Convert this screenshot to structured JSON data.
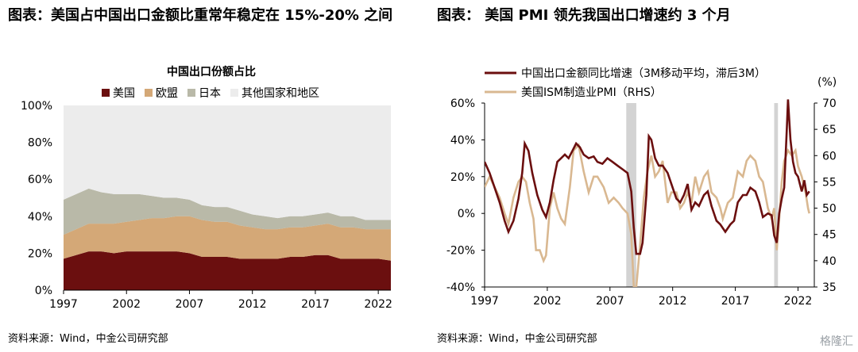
{
  "left_panel": {
    "title": "图表：美国占中国出口金额比重常年稳定在 15%-20% 之间",
    "source": "资料来源：Wind，中金公司研究部"
  },
  "right_panel": {
    "title": "图表：  美国 PMI 领先我国出口增速约 3 个月",
    "source": "资料来源：Wind，中金公司研究部"
  },
  "watermark": "格隆汇",
  "chart_data": [
    {
      "type": "area",
      "stacked": true,
      "title": "中国出口份额占比",
      "x_ticks": [
        "1997",
        "2002",
        "2007",
        "2012",
        "2017",
        "2022"
      ],
      "y_ticks": [
        "0%",
        "20%",
        "40%",
        "60%",
        "80%",
        "100%"
      ],
      "ylim": [
        0,
        100
      ],
      "grid": false,
      "legend_position": "top",
      "background": "#f2f2f2",
      "x": [
        1997,
        1998,
        1999,
        2000,
        2001,
        2002,
        2003,
        2004,
        2005,
        2006,
        2007,
        2008,
        2009,
        2010,
        2011,
        2012,
        2013,
        2014,
        2015,
        2016,
        2017,
        2018,
        2019,
        2020,
        2021,
        2022,
        2023
      ],
      "series": [
        {
          "name": "美国",
          "color": "#6b0f0f",
          "values": [
            17,
            19,
            21,
            21,
            20,
            21,
            21,
            21,
            21,
            21,
            20,
            18,
            18,
            18,
            17,
            17,
            17,
            17,
            18,
            18,
            19,
            19,
            17,
            17,
            17,
            17,
            16
          ]
        },
        {
          "name": "欧盟",
          "color": "#d4a877",
          "values": [
            13,
            14,
            15,
            15,
            16,
            16,
            17,
            18,
            18,
            19,
            20,
            20,
            19,
            19,
            18,
            17,
            16,
            16,
            16,
            16,
            16,
            17,
            17,
            17,
            16,
            16,
            17
          ]
        },
        {
          "name": "日本",
          "color": "#b9b9a8",
          "values": [
            19,
            19,
            19,
            17,
            16,
            15,
            14,
            12,
            11,
            10,
            9,
            8,
            8,
            8,
            8,
            7,
            7,
            6,
            6,
            6,
            6,
            6,
            6,
            6,
            5,
            5,
            5
          ]
        },
        {
          "name": "其他国家和地区",
          "color": "#ececec",
          "values": [
            51,
            48,
            45,
            47,
            48,
            48,
            48,
            49,
            50,
            50,
            51,
            54,
            55,
            55,
            57,
            59,
            60,
            61,
            60,
            60,
            59,
            58,
            60,
            60,
            62,
            62,
            62
          ]
        }
      ]
    },
    {
      "type": "line",
      "x_ticks": [
        "1997",
        "2002",
        "2007",
        "2012",
        "2017",
        "2022"
      ],
      "y_left_ticks": [
        "-40%",
        "-20%",
        "0%",
        "20%",
        "40%",
        "60%"
      ],
      "y_left_range": [
        -40,
        60
      ],
      "y_right_ticks": [
        "35",
        "40",
        "45",
        "50",
        "55",
        "60",
        "65",
        "70"
      ],
      "y_right_range": [
        35,
        70
      ],
      "right_axis_unit": "(%)",
      "legend_position": "top",
      "shaded_periods": [
        [
          2008.3,
          2009.1
        ],
        [
          2020.1,
          2020.4
        ]
      ],
      "series": [
        {
          "name": "中国出口金额同比增速（3M移动平均，滞后3M）",
          "axis": "left",
          "color": "#6b0f0f",
          "points": [
            [
              1997.0,
              28
            ],
            [
              1997.4,
              22
            ],
            [
              1997.8,
              14
            ],
            [
              1998.2,
              6
            ],
            [
              1998.6,
              -4
            ],
            [
              1998.9,
              -10
            ],
            [
              1999.3,
              -4
            ],
            [
              1999.7,
              8
            ],
            [
              2000.0,
              22
            ],
            [
              2000.2,
              38
            ],
            [
              2000.5,
              34
            ],
            [
              2000.8,
              22
            ],
            [
              2001.2,
              10
            ],
            [
              2001.6,
              2
            ],
            [
              2001.9,
              -2
            ],
            [
              2002.2,
              6
            ],
            [
              2002.5,
              18
            ],
            [
              2002.8,
              28
            ],
            [
              2003.1,
              30
            ],
            [
              2003.4,
              32
            ],
            [
              2003.7,
              30
            ],
            [
              2004.0,
              34
            ],
            [
              2004.3,
              38
            ],
            [
              2004.6,
              36
            ],
            [
              2004.9,
              32
            ],
            [
              2005.3,
              30
            ],
            [
              2005.7,
              31
            ],
            [
              2006.0,
              28
            ],
            [
              2006.4,
              27
            ],
            [
              2006.8,
              30
            ],
            [
              2007.2,
              28
            ],
            [
              2007.6,
              26
            ],
            [
              2008.0,
              24
            ],
            [
              2008.4,
              22
            ],
            [
              2008.7,
              12
            ],
            [
              2008.9,
              -8
            ],
            [
              2009.1,
              -22
            ],
            [
              2009.4,
              -22
            ],
            [
              2009.6,
              -16
            ],
            [
              2009.9,
              10
            ],
            [
              2010.1,
              42
            ],
            [
              2010.3,
              40
            ],
            [
              2010.6,
              30
            ],
            [
              2010.9,
              26
            ],
            [
              2011.2,
              26
            ],
            [
              2011.6,
              22
            ],
            [
              2011.9,
              16
            ],
            [
              2012.3,
              8
            ],
            [
              2012.6,
              6
            ],
            [
              2012.9,
              10
            ],
            [
              2013.2,
              16
            ],
            [
              2013.5,
              2
            ],
            [
              2013.8,
              6
            ],
            [
              2014.1,
              4
            ],
            [
              2014.5,
              10
            ],
            [
              2014.8,
              12
            ],
            [
              2015.1,
              4
            ],
            [
              2015.5,
              -4
            ],
            [
              2015.8,
              -6
            ],
            [
              2016.2,
              -10
            ],
            [
              2016.6,
              -6
            ],
            [
              2016.9,
              -4
            ],
            [
              2017.2,
              6
            ],
            [
              2017.6,
              10
            ],
            [
              2017.9,
              10
            ],
            [
              2018.2,
              14
            ],
            [
              2018.6,
              12
            ],
            [
              2018.9,
              6
            ],
            [
              2019.2,
              -2
            ],
            [
              2019.6,
              0
            ],
            [
              2019.9,
              -1
            ],
            [
              2020.1,
              -12
            ],
            [
              2020.3,
              -16
            ],
            [
              2020.5,
              0
            ],
            [
              2020.7,
              8
            ],
            [
              2020.9,
              14
            ],
            [
              2021.1,
              45
            ],
            [
              2021.2,
              62
            ],
            [
              2021.4,
              40
            ],
            [
              2021.6,
              28
            ],
            [
              2021.8,
              22
            ],
            [
              2022.0,
              20
            ],
            [
              2022.3,
              12
            ],
            [
              2022.5,
              18
            ],
            [
              2022.7,
              10
            ],
            [
              2022.9,
              12
            ]
          ]
        },
        {
          "name": "美国ISM制造业PMI（RHS）",
          "axis": "right",
          "color": "#d9b891",
          "points": [
            [
              1997.0,
              54
            ],
            [
              1997.4,
              56
            ],
            [
              1997.8,
              54
            ],
            [
              1998.2,
              52
            ],
            [
              1998.6,
              49
            ],
            [
              1998.9,
              47
            ],
            [
              1999.3,
              52
            ],
            [
              1999.7,
              55
            ],
            [
              2000.0,
              56
            ],
            [
              2000.3,
              55
            ],
            [
              2000.6,
              51
            ],
            [
              2000.9,
              48
            ],
            [
              2001.1,
              42
            ],
            [
              2001.4,
              42
            ],
            [
              2001.7,
              40
            ],
            [
              2001.9,
              41
            ],
            [
              2002.2,
              50
            ],
            [
              2002.5,
              53
            ],
            [
              2002.8,
              50
            ],
            [
              2003.1,
              48
            ],
            [
              2003.4,
              47
            ],
            [
              2003.8,
              54
            ],
            [
              2004.1,
              61
            ],
            [
              2004.5,
              62
            ],
            [
              2004.9,
              57
            ],
            [
              2005.3,
              53
            ],
            [
              2005.7,
              56
            ],
            [
              2006.0,
              56
            ],
            [
              2006.5,
              54
            ],
            [
              2006.9,
              51
            ],
            [
              2007.3,
              52
            ],
            [
              2007.7,
              51
            ],
            [
              2008.0,
              50
            ],
            [
              2008.4,
              49
            ],
            [
              2008.7,
              45
            ],
            [
              2008.9,
              35
            ],
            [
              2009.1,
              35
            ],
            [
              2009.4,
              43
            ],
            [
              2009.7,
              52
            ],
            [
              2010.0,
              57
            ],
            [
              2010.3,
              60
            ],
            [
              2010.6,
              56
            ],
            [
              2010.9,
              57
            ],
            [
              2011.2,
              59
            ],
            [
              2011.6,
              51
            ],
            [
              2011.9,
              53
            ],
            [
              2012.3,
              53
            ],
            [
              2012.6,
              50
            ],
            [
              2012.9,
              51
            ],
            [
              2013.2,
              53
            ],
            [
              2013.5,
              51
            ],
            [
              2013.8,
              56
            ],
            [
              2014.1,
              53
            ],
            [
              2014.5,
              56
            ],
            [
              2014.8,
              57
            ],
            [
              2015.1,
              53
            ],
            [
              2015.5,
              52
            ],
            [
              2015.8,
              50
            ],
            [
              2016.0,
              48
            ],
            [
              2016.4,
              51
            ],
            [
              2016.8,
              52
            ],
            [
              2017.2,
              57
            ],
            [
              2017.6,
              56
            ],
            [
              2017.9,
              59
            ],
            [
              2018.2,
              60
            ],
            [
              2018.6,
              59
            ],
            [
              2018.9,
              56
            ],
            [
              2019.2,
              55
            ],
            [
              2019.6,
              50
            ],
            [
              2019.9,
              48
            ],
            [
              2020.1,
              50
            ],
            [
              2020.3,
              42
            ],
            [
              2020.5,
              48
            ],
            [
              2020.7,
              55
            ],
            [
              2020.9,
              59
            ],
            [
              2021.2,
              61
            ],
            [
              2021.5,
              60
            ],
            [
              2021.8,
              61
            ],
            [
              2022.0,
              58
            ],
            [
              2022.3,
              56
            ],
            [
              2022.6,
              53
            ],
            [
              2022.8,
              50
            ],
            [
              2022.9,
              49
            ]
          ]
        }
      ]
    }
  ]
}
